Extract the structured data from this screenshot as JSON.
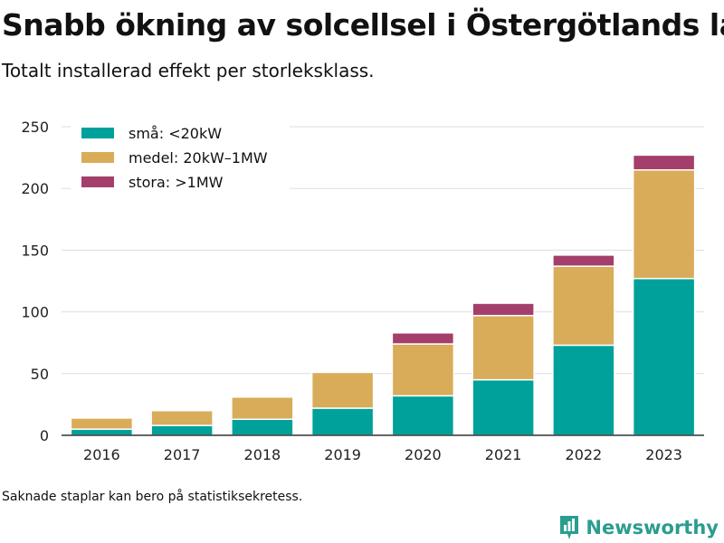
{
  "chart_data": {
    "type": "bar",
    "stacked": true,
    "title": "Snabb ökning av solcellsel i Östergötlands län",
    "subtitle": "Totalt installerad effekt per storleksklass.",
    "categories": [
      "2016",
      "2017",
      "2018",
      "2019",
      "2020",
      "2021",
      "2022",
      "2023"
    ],
    "series": [
      {
        "name": "små: <20kW",
        "color": "#00a19a",
        "values": [
          5,
          8,
          13,
          22,
          32,
          45,
          73,
          127
        ]
      },
      {
        "name": "medel: 20kW–1MW",
        "color": "#d9ac5a",
        "values": [
          9,
          12,
          18,
          29,
          42,
          52,
          64,
          88
        ]
      },
      {
        "name": "stora: >1MW",
        "color": "#a43f6b",
        "values": [
          0,
          0,
          0,
          0,
          9,
          10,
          9,
          12
        ]
      }
    ],
    "ylim": [
      0,
      250
    ],
    "yticks": [
      0,
      50,
      100,
      150,
      200,
      250
    ],
    "grid": true,
    "legend": "top-left"
  },
  "footnote": "Saknade staplar kan bero på statistiksekretess.",
  "brand": {
    "name": "Newsworthy",
    "icon": "newsworthy-logo-icon"
  }
}
